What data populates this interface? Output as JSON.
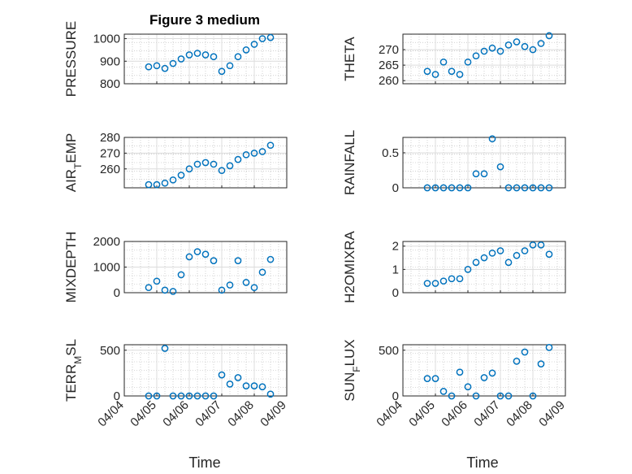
{
  "figure": {
    "title": "Figure 3 medium",
    "xlabel": "Time"
  },
  "colors": {
    "marker": "#0072BD",
    "axis": "#262626",
    "grid": "#dcdcdc",
    "minor_grid": "#b4b4b4"
  },
  "chart_data": [
    {
      "type": "scatter",
      "ylabel": "PRESSURE",
      "ylim": [
        800,
        1020
      ],
      "yticks": [
        800,
        900,
        1000
      ],
      "xticks": [
        "04/04",
        "04/05",
        "04/06",
        "04/07",
        "04/08",
        "04/09"
      ],
      "x_range": [
        "04/04",
        "04/09"
      ],
      "grid": true,
      "x": [
        "04/04 18:00",
        "04/05 00:00",
        "04/05 06:00",
        "04/05 12:00",
        "04/05 18:00",
        "04/06 00:00",
        "04/06 06:00",
        "04/06 12:00",
        "04/06 18:00",
        "04/07 00:00",
        "04/07 06:00",
        "04/07 12:00",
        "04/07 18:00",
        "04/08 00:00",
        "04/08 06:00",
        "04/08 12:00"
      ],
      "values": [
        875,
        880,
        868,
        890,
        910,
        928,
        935,
        928,
        920,
        855,
        880,
        920,
        950,
        975,
        1000,
        1005
      ]
    },
    {
      "type": "scatter",
      "ylabel": "THETA",
      "ylim": [
        259,
        275
      ],
      "yticks": [
        260,
        265,
        270
      ],
      "xticks": [
        "04/04",
        "04/05",
        "04/06",
        "04/07",
        "04/08",
        "04/09"
      ],
      "x_range": [
        "04/04",
        "04/09"
      ],
      "grid": true,
      "x": [
        "04/04 18:00",
        "04/05 00:00",
        "04/05 06:00",
        "04/05 12:00",
        "04/05 18:00",
        "04/06 00:00",
        "04/06 06:00",
        "04/06 12:00",
        "04/06 18:00",
        "04/07 00:00",
        "04/07 06:00",
        "04/07 12:00",
        "04/07 18:00",
        "04/08 00:00",
        "04/08 06:00",
        "04/08 12:00"
      ],
      "values": [
        263,
        262,
        266,
        263,
        262,
        266,
        268,
        269.5,
        270.5,
        269.5,
        271.5,
        272.5,
        271,
        270,
        272,
        274.5
      ]
    },
    {
      "type": "scatter",
      "ylabel": "AIR_TEMP",
      "ylim": [
        248,
        280
      ],
      "yticks": [
        260,
        270,
        280
      ],
      "xticks": [
        "04/04",
        "04/05",
        "04/06",
        "04/07",
        "04/08",
        "04/09"
      ],
      "x_range": [
        "04/04",
        "04/09"
      ],
      "grid": true,
      "x": [
        "04/04 18:00",
        "04/05 00:00",
        "04/05 06:00",
        "04/05 12:00",
        "04/05 18:00",
        "04/06 00:00",
        "04/06 06:00",
        "04/06 12:00",
        "04/06 18:00",
        "04/07 00:00",
        "04/07 06:00",
        "04/07 12:00",
        "04/07 18:00",
        "04/08 00:00",
        "04/08 06:00",
        "04/08 12:00"
      ],
      "values": [
        250,
        250,
        251,
        253,
        256,
        260,
        263,
        264,
        263,
        259,
        262,
        266,
        269,
        270,
        271,
        275
      ]
    },
    {
      "type": "scatter",
      "ylabel": "RAINFALL",
      "ylim": [
        0,
        0.72
      ],
      "yticks": [
        0,
        0.5
      ],
      "xticks": [
        "04/04",
        "04/05",
        "04/06",
        "04/07",
        "04/08",
        "04/09"
      ],
      "x_range": [
        "04/04",
        "04/09"
      ],
      "grid": true,
      "x": [
        "04/04 18:00",
        "04/05 00:00",
        "04/05 06:00",
        "04/05 12:00",
        "04/05 18:00",
        "04/06 00:00",
        "04/06 06:00",
        "04/06 12:00",
        "04/06 18:00",
        "04/07 00:00",
        "04/07 06:00",
        "04/07 12:00",
        "04/07 18:00",
        "04/08 00:00",
        "04/08 06:00",
        "04/08 12:00"
      ],
      "values": [
        0,
        0,
        0,
        0,
        0,
        0,
        0.2,
        0.2,
        0.7,
        0.3,
        0,
        0,
        0,
        0,
        0,
        0
      ]
    },
    {
      "type": "scatter",
      "ylabel": "MIXDEPTH",
      "ylim": [
        0,
        2000
      ],
      "yticks": [
        0,
        1000,
        2000
      ],
      "xticks": [
        "04/04",
        "04/05",
        "04/06",
        "04/07",
        "04/08",
        "04/09"
      ],
      "x_range": [
        "04/04",
        "04/09"
      ],
      "grid": true,
      "x": [
        "04/04 18:00",
        "04/05 00:00",
        "04/05 06:00",
        "04/05 12:00",
        "04/05 18:00",
        "04/06 00:00",
        "04/06 06:00",
        "04/06 12:00",
        "04/06 18:00",
        "04/07 00:00",
        "04/07 06:00",
        "04/07 12:00",
        "04/07 18:00",
        "04/08 00:00",
        "04/08 06:00",
        "04/08 12:00"
      ],
      "values": [
        200,
        450,
        100,
        50,
        700,
        1400,
        1600,
        1500,
        1250,
        100,
        300,
        1250,
        400,
        200,
        800,
        1300
      ]
    },
    {
      "type": "scatter",
      "ylabel": "H2OMIXRA",
      "ylim": [
        0,
        2.2
      ],
      "yticks": [
        0,
        1,
        2
      ],
      "xticks": [
        "04/04",
        "04/05",
        "04/06",
        "04/07",
        "04/08",
        "04/09"
      ],
      "x_range": [
        "04/04",
        "04/09"
      ],
      "grid": true,
      "x": [
        "04/04 18:00",
        "04/05 00:00",
        "04/05 06:00",
        "04/05 12:00",
        "04/05 18:00",
        "04/06 00:00",
        "04/06 06:00",
        "04/06 12:00",
        "04/06 18:00",
        "04/07 00:00",
        "04/07 06:00",
        "04/07 12:00",
        "04/07 18:00",
        "04/08 00:00",
        "04/08 06:00",
        "04/08 12:00"
      ],
      "values": [
        0.4,
        0.4,
        0.5,
        0.6,
        0.6,
        1.0,
        1.3,
        1.5,
        1.7,
        1.8,
        1.3,
        1.6,
        1.8,
        2.05,
        2.05,
        1.65
      ]
    },
    {
      "type": "scatter",
      "ylabel": "TERR_MSL",
      "ylim": [
        0,
        560
      ],
      "yticks": [
        0,
        500
      ],
      "xticks": [
        "04/04",
        "04/05",
        "04/06",
        "04/07",
        "04/08",
        "04/09"
      ],
      "x_range": [
        "04/04",
        "04/09"
      ],
      "grid": true,
      "x": [
        "04/04 18:00",
        "04/05 00:00",
        "04/05 06:00",
        "04/05 12:00",
        "04/05 18:00",
        "04/06 00:00",
        "04/06 06:00",
        "04/06 12:00",
        "04/06 18:00",
        "04/07 00:00",
        "04/07 06:00",
        "04/07 12:00",
        "04/07 18:00",
        "04/08 00:00",
        "04/08 06:00",
        "04/08 12:00"
      ],
      "values": [
        0,
        0,
        520,
        0,
        0,
        0,
        0,
        0,
        0,
        230,
        130,
        200,
        110,
        110,
        100,
        20
      ]
    },
    {
      "type": "scatter",
      "ylabel": "SUN_FLUX",
      "ylim": [
        0,
        560
      ],
      "yticks": [
        0,
        500
      ],
      "xticks": [
        "04/04",
        "04/05",
        "04/06",
        "04/07",
        "04/08",
        "04/09"
      ],
      "x_range": [
        "04/04",
        "04/09"
      ],
      "grid": true,
      "x": [
        "04/04 18:00",
        "04/05 00:00",
        "04/05 06:00",
        "04/05 12:00",
        "04/05 18:00",
        "04/06 00:00",
        "04/06 06:00",
        "04/06 12:00",
        "04/06 18:00",
        "04/07 00:00",
        "04/07 06:00",
        "04/07 12:00",
        "04/07 18:00",
        "04/08 00:00",
        "04/08 06:00",
        "04/08 12:00"
      ],
      "values": [
        190,
        190,
        50,
        0,
        260,
        100,
        0,
        200,
        250,
        0,
        0,
        380,
        480,
        0,
        350,
        530
      ]
    }
  ]
}
